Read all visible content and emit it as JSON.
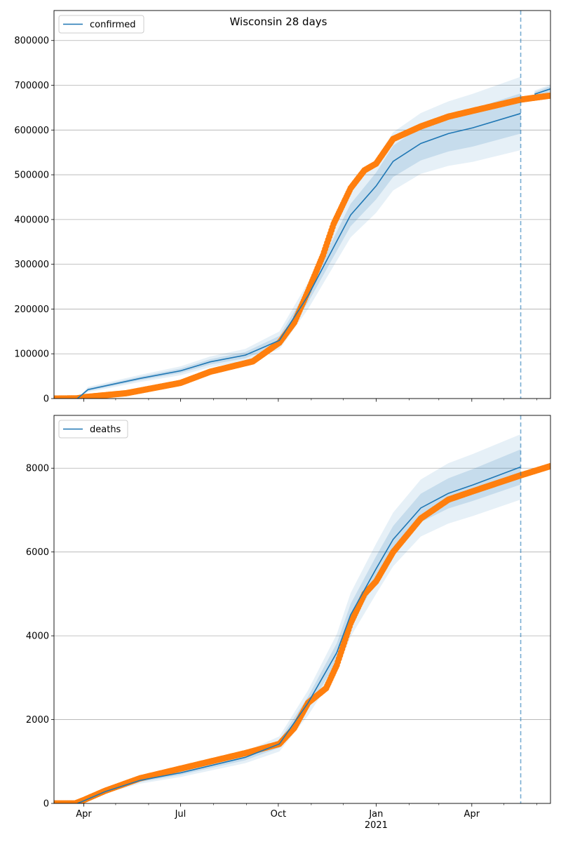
{
  "chart_data": [
    {
      "type": "line",
      "title": "Wisconsin 28 days",
      "legend": {
        "label": "confirmed",
        "placement": "top-left"
      },
      "x_unit": "days since 2020-03-04",
      "xlim": [
        0,
        467
      ],
      "ylim": [
        0,
        867000
      ],
      "yticks": [
        0,
        100000,
        200000,
        300000,
        400000,
        500000,
        600000,
        700000,
        800000
      ],
      "ytick_labels": [
        "0",
        "100000",
        "200000",
        "300000",
        "400000",
        "500000",
        "600000",
        "700000",
        "800000"
      ],
      "grid": true,
      "forecast_start_day": 439,
      "model": {
        "x": [
          22,
          32,
          81,
          119,
          147,
          180,
          212,
          239,
          259,
          279,
          303,
          319,
          345,
          371,
          394,
          439
        ],
        "y": [
          0,
          20000,
          45000,
          62000,
          82000,
          97000,
          130000,
          230000,
          320000,
          410000,
          475000,
          530000,
          570000,
          592000,
          605000,
          637000
        ],
        "inner_halfwidth": [
          0,
          3000,
          4000,
          5000,
          6000,
          7000,
          10000,
          15000,
          20000,
          25000,
          30000,
          35000,
          38000,
          40000,
          42000,
          45000
        ],
        "outer_halfwidth": [
          0,
          6000,
          8000,
          10000,
          12000,
          14000,
          20000,
          30000,
          40000,
          50000,
          60000,
          65000,
          68000,
          72000,
          76000,
          82000
        ]
      },
      "future_model": {
        "x": [
          452,
          467
        ],
        "y": [
          680000,
          692000
        ],
        "inner_halfwidth": [
          5000,
          6000
        ],
        "outer_halfwidth": [
          8000,
          10000
        ]
      },
      "observed": {
        "x": [
          0,
          22,
          28,
          68,
          119,
          147,
          187,
          212,
          226,
          239,
          253,
          263,
          279,
          292,
          303,
          319,
          345,
          371,
          394,
          439,
          467
        ],
        "y": [
          0,
          500,
          3000,
          12000,
          35000,
          60000,
          83000,
          125000,
          170000,
          240000,
          320000,
          390000,
          470000,
          510000,
          525000,
          580000,
          608000,
          630000,
          643000,
          668000,
          677000
        ]
      }
    },
    {
      "type": "line",
      "title": "",
      "legend": {
        "label": "deaths",
        "placement": "top-left"
      },
      "x_unit": "days since 2020-03-04",
      "xlim": [
        0,
        467
      ],
      "ylim": [
        0,
        9260
      ],
      "yticks": [
        0,
        2000,
        4000,
        6000,
        8000
      ],
      "ytick_labels": [
        "0",
        "2000",
        "4000",
        "6000",
        "8000"
      ],
      "grid": true,
      "forecast_start_day": 439,
      "model": {
        "x": [
          22,
          28,
          48,
          81,
          119,
          180,
          212,
          239,
          266,
          279,
          303,
          319,
          345,
          371,
          394,
          439
        ],
        "y": [
          0,
          60,
          280,
          550,
          730,
          1100,
          1420,
          2400,
          3600,
          4500,
          5600,
          6300,
          7050,
          7400,
          7600,
          8030
        ],
        "inner_halfwidth": [
          0,
          10,
          20,
          40,
          50,
          70,
          90,
          150,
          220,
          260,
          300,
          320,
          340,
          360,
          380,
          420
        ],
        "outer_halfwidth": [
          0,
          20,
          40,
          80,
          100,
          140,
          180,
          300,
          440,
          520,
          600,
          640,
          680,
          720,
          740,
          780
        ]
      },
      "observed": {
        "x": [
          0,
          20,
          28,
          48,
          81,
          119,
          147,
          180,
          212,
          226,
          239,
          256,
          266,
          279,
          292,
          303,
          319,
          345,
          371,
          394,
          439,
          467
        ],
        "y": [
          0,
          0,
          80,
          300,
          600,
          830,
          1000,
          1200,
          1420,
          1800,
          2400,
          2750,
          3300,
          4300,
          5000,
          5300,
          6000,
          6800,
          7250,
          7450,
          7830,
          8050
        ]
      }
    }
  ],
  "x_axis": {
    "major_ticks": [
      28,
      119,
      211,
      303,
      393
    ],
    "major_labels": [
      "Apr",
      "Jul",
      "Oct",
      "Jan",
      "Apr"
    ],
    "year_label": "2021",
    "minor_ticks": [
      58,
      89,
      150,
      181,
      242,
      272,
      334,
      362,
      423,
      454
    ]
  },
  "colors": {
    "model": "#1f77b4",
    "observed": "#ff7f0e",
    "grid": "#b0b0b0"
  }
}
